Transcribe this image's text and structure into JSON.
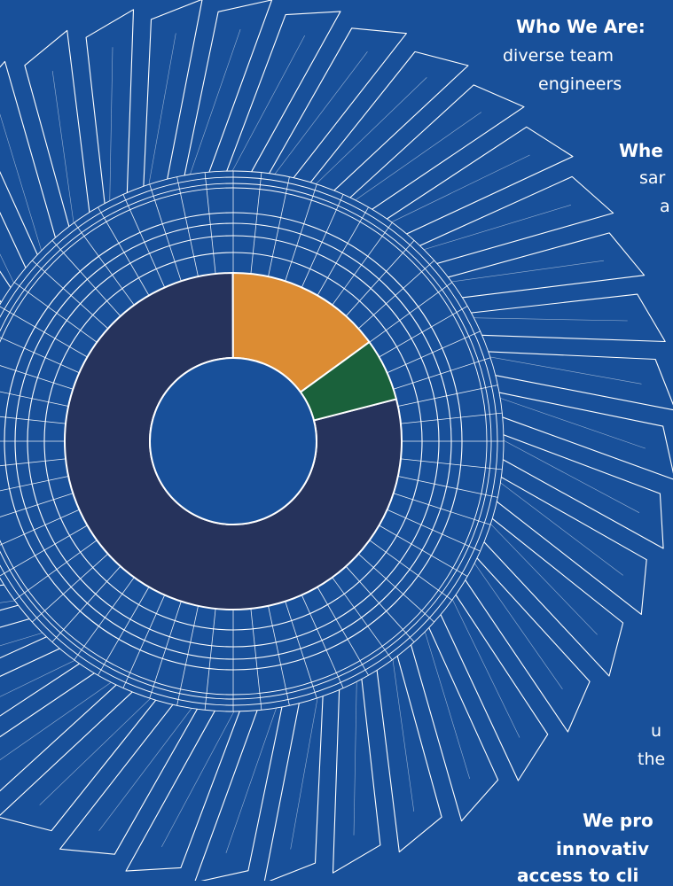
{
  "chart_data": {
    "type": "pie",
    "style": "donut",
    "title": "",
    "slices": [
      {
        "value": 79,
        "color": "#26335c"
      },
      {
        "value": 15,
        "color": "#dc8c33"
      },
      {
        "value": 6,
        "color": "#1a613b"
      }
    ]
  },
  "colors": {
    "background": "#18509a",
    "line": "#ffffff"
  },
  "text": {
    "who_heading": "Who We Are:",
    "who_line1": "diverse team",
    "who_line2": "engineers",
    "where_heading": "Whe",
    "where_line1": "sar",
    "where_line2": "a",
    "fragment_u": "u",
    "fragment_the": "the",
    "provide_line1": "We pro",
    "provide_line2": "innovativ",
    "provide_line3": "access to cli"
  }
}
